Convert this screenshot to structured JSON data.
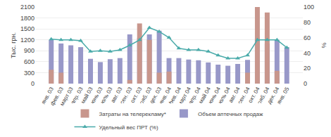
{
  "chart_data": {
    "type": "bar",
    "categories": [
      "янв. 03",
      "фев. 03",
      "март 03",
      "апр. 03",
      "май 03",
      "июнь 03",
      "июль 03",
      "авг. 03",
      "сен. 03",
      "окт. 03",
      "нояб. 03",
      "дек. 03",
      "янв. 04",
      "фев. 04",
      "март 04",
      "апр. 04",
      "май 04",
      "июнь 04",
      "июль 04",
      "авг. 04",
      "сен. 04",
      "окт. 04",
      "нояб. 04",
      "дек. 04",
      "янв. 05"
    ],
    "series": [
      {
        "name": "Затраты на телерекламу*",
        "color": "#c8968c",
        "type": "bar",
        "values": [
          380,
          300,
          0,
          0,
          0,
          0,
          0,
          0,
          100,
          1650,
          1200,
          300,
          330,
          0,
          0,
          0,
          0,
          0,
          0,
          0,
          300,
          2100,
          1950,
          350,
          0
        ]
      },
      {
        "name": "Объем аптечных продаж",
        "color": "#9898c8",
        "type": "bar",
        "values": [
          1200,
          1100,
          1050,
          1000,
          680,
          590,
          670,
          700,
          1350,
          1250,
          1350,
          1450,
          700,
          700,
          660,
          640,
          580,
          520,
          490,
          540,
          650,
          1250,
          1100,
          1200,
          1000
        ]
      },
      {
        "name": "Удельный вес ПРТ (%)",
        "color": "#4aabaa",
        "type": "line",
        "axis": "y2",
        "marker": "triangle",
        "values": [
          58,
          57,
          57,
          56,
          42,
          43,
          42,
          44,
          50,
          57,
          73,
          68,
          60,
          46,
          44,
          44,
          42,
          37,
          33,
          33,
          37,
          57,
          57,
          57,
          47
        ]
      }
    ],
    "ylabel": "Тыс. грн.",
    "y2label": "%",
    "ylim": [
      0,
      2100
    ],
    "yticks": [
      0,
      300,
      600,
      900,
      1200,
      1500,
      1800,
      2100
    ],
    "y2lim": [
      0,
      100
    ],
    "y2ticks": [
      0,
      20,
      40,
      60,
      80,
      100
    ],
    "grid": true,
    "legend": "bottom"
  }
}
